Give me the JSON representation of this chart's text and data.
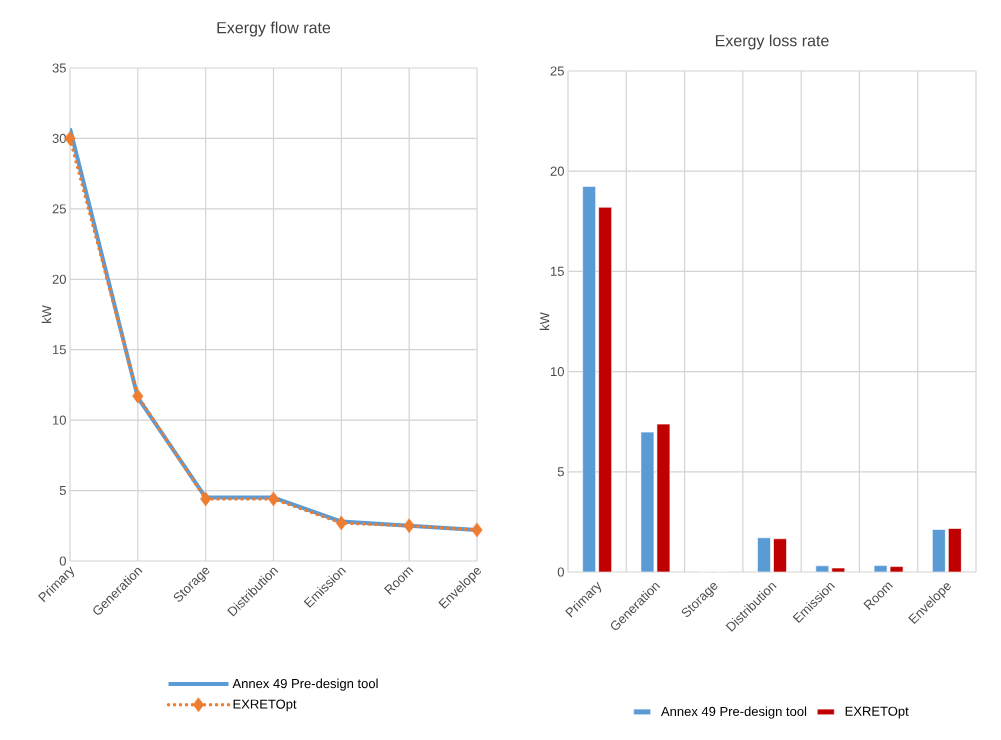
{
  "chart_data": [
    {
      "type": "line",
      "title": "Exergy flow rate",
      "ylabel": "kW",
      "categories": [
        "Primary",
        "Generation",
        "Storage",
        "Distribution",
        "Emission",
        "Room",
        "Envelope"
      ],
      "ylim": [
        0,
        35
      ],
      "yticks": [
        0,
        5,
        10,
        15,
        20,
        25,
        30,
        35
      ],
      "grid": true,
      "legend": "bottom",
      "series": [
        {
          "name": "Annex 49 Pre-design tool",
          "color": "#5b9bd5",
          "marker": "none",
          "line_style": "solid",
          "values": [
            30.7,
            11.6,
            4.5,
            4.5,
            2.8,
            2.5,
            2.2
          ]
        },
        {
          "name": "EXRETOpt",
          "color": "#ed7d31",
          "marker": "diamond",
          "line_style": "dotted",
          "values": [
            30.0,
            11.7,
            4.4,
            4.4,
            2.7,
            2.5,
            2.2
          ]
        }
      ]
    },
    {
      "type": "bar",
      "title": "Exergy loss rate",
      "ylabel": "kW",
      "categories": [
        "Primary",
        "Generation",
        "Storage",
        "Distribution",
        "Emission",
        "Room",
        "Envelope"
      ],
      "ylim": [
        0,
        25
      ],
      "yticks": [
        0,
        5,
        10,
        15,
        20,
        25
      ],
      "grid": true,
      "legend": "bottom",
      "series": [
        {
          "name": "Annex 49 Pre-design tool",
          "color": "#5b9bd5",
          "values": [
            19.24,
            6.98,
            0,
            1.71,
            0.31,
            0.32,
            2.12
          ]
        },
        {
          "name": "EXRETOpt",
          "color": "#c00000",
          "values": [
            18.2,
            7.38,
            0,
            1.66,
            0.2,
            0.27,
            2.17
          ]
        }
      ]
    }
  ]
}
